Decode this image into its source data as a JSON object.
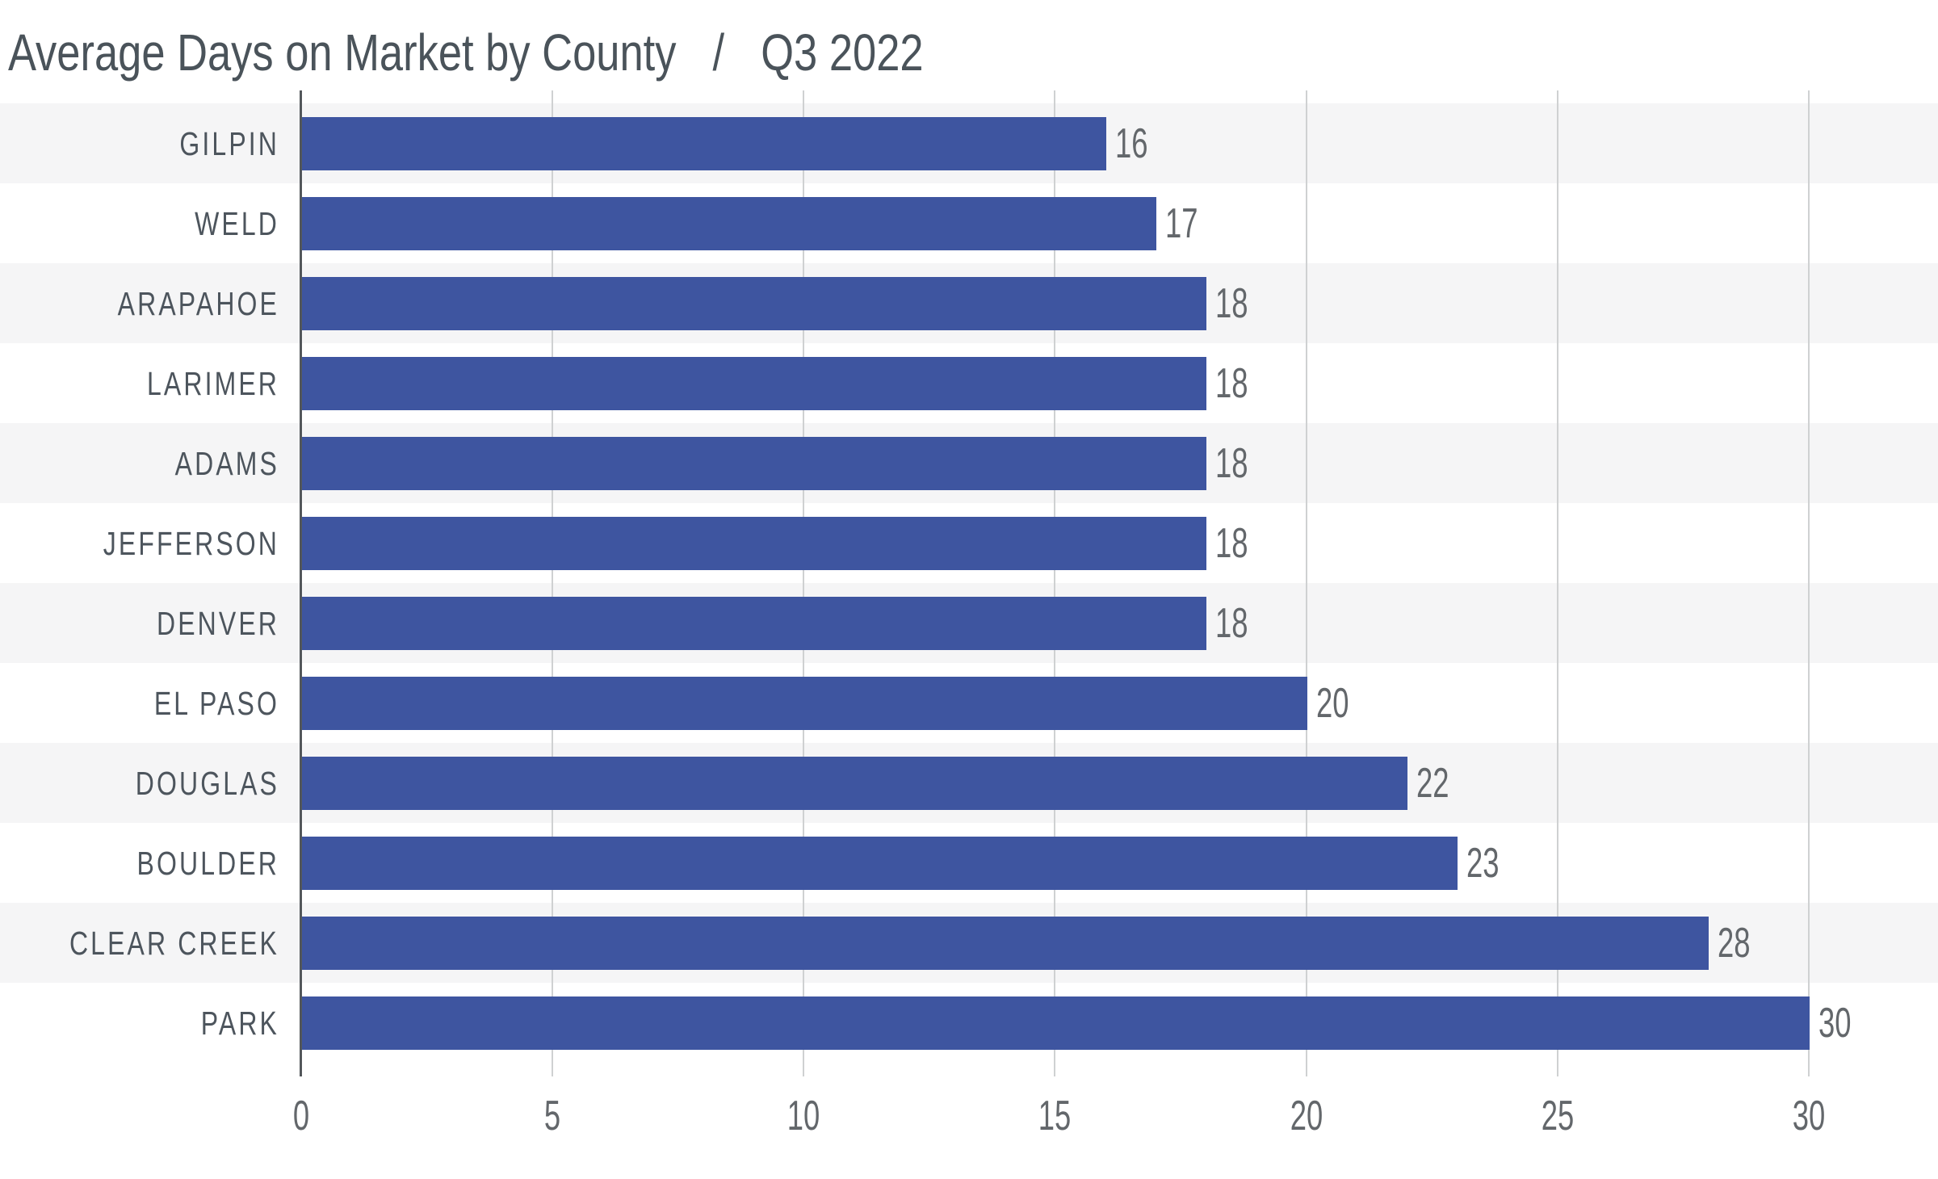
{
  "title": {
    "main": "Average Days on Market by County",
    "separator": "/",
    "subtitle": "Q3 2022"
  },
  "chart_data": {
    "type": "bar",
    "orientation": "horizontal",
    "title": "Average Days on Market by County",
    "period": "Q3 2022",
    "categories": [
      "GILPIN",
      "WELD",
      "ARAPAHOE",
      "LARIMER",
      "ADAMS",
      "JEFFERSON",
      "DENVER",
      "EL PASO",
      "DOUGLAS",
      "BOULDER",
      "CLEAR CREEK",
      "PARK"
    ],
    "values": [
      16,
      17,
      18,
      18,
      18,
      18,
      18,
      20,
      22,
      23,
      28,
      30
    ],
    "x_ticks": [
      0,
      5,
      10,
      15,
      20,
      25,
      30
    ],
    "xlim": [
      0,
      30
    ],
    "xlabel": "",
    "ylabel": "",
    "value_labels": true,
    "grid": "vertical",
    "legend": "none",
    "row_striping": "alternating, first row shaded",
    "colors": {
      "bar": "#3E55A0",
      "stripe": "#F5F5F6",
      "stripe_alt": "#FFFFFF",
      "grid": "#CFD1D2",
      "axis": "#53575B",
      "category_label": "#4D555D",
      "value_label": "#63676B",
      "title": "#4A535A",
      "background": "#FFFFFF"
    }
  }
}
